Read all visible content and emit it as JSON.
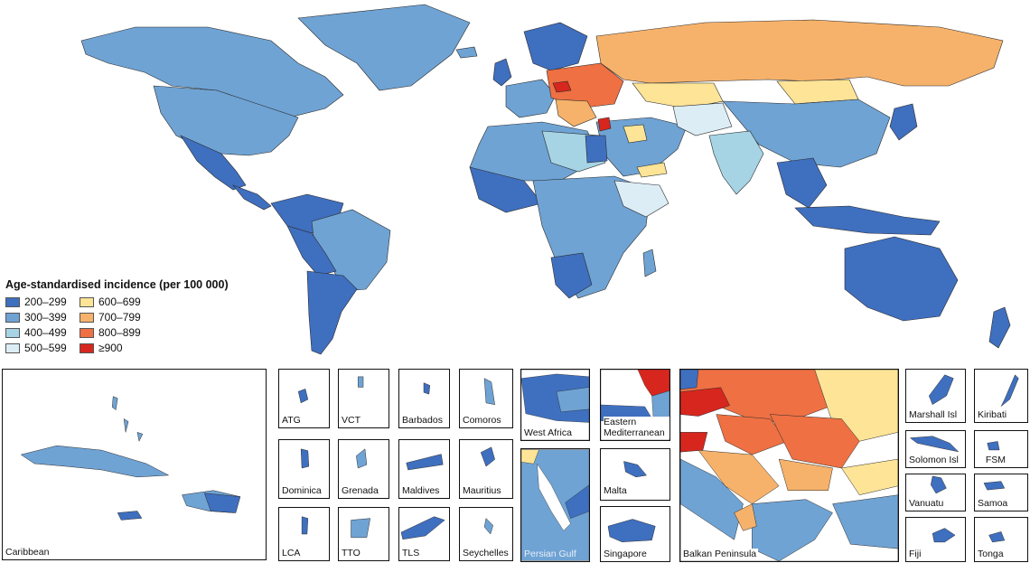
{
  "legend": {
    "title": "Age-standardised incidence (per 100 000)",
    "classes": [
      {
        "label": "200–299",
        "color": "#3f6fbf"
      },
      {
        "label": "600–699",
        "color": "#fde496"
      },
      {
        "label": "300–399",
        "color": "#6fa3d4"
      },
      {
        "label": "700–799",
        "color": "#f6b26b"
      },
      {
        "label": "400–499",
        "color": "#a6d4e5"
      },
      {
        "label": "800–899",
        "color": "#ee7043"
      },
      {
        "label": "500–599",
        "color": "#dcedf5"
      },
      {
        "label": "≥900",
        "color": "#d7261e"
      }
    ]
  },
  "insets": {
    "caribbean": "Caribbean",
    "atg": "ATG",
    "vct": "VCT",
    "barbados": "Barbados",
    "comoros": "Comoros",
    "dominica": "Dominica",
    "grenada": "Grenada",
    "maldives": "Maldives",
    "mauritius": "Mauritius",
    "lca": "LCA",
    "tto": "TTO",
    "tls": "TLS",
    "seychelles": "Seychelles",
    "west_africa": "West Africa",
    "eastern_med": "Eastern Mediterranean",
    "persian_gulf": "Persian Gulf",
    "malta": "Malta",
    "singapore": "Singapore",
    "balkan": "Balkan Peninsula",
    "marshall": "Marshall Isl",
    "kiribati": "Kiribati",
    "solomon": "Solomon Isl",
    "fsm": "FSM",
    "vanuatu": "Vanuatu",
    "samoa": "Samoa",
    "fiji": "Fiji",
    "tonga": "Tonga"
  }
}
